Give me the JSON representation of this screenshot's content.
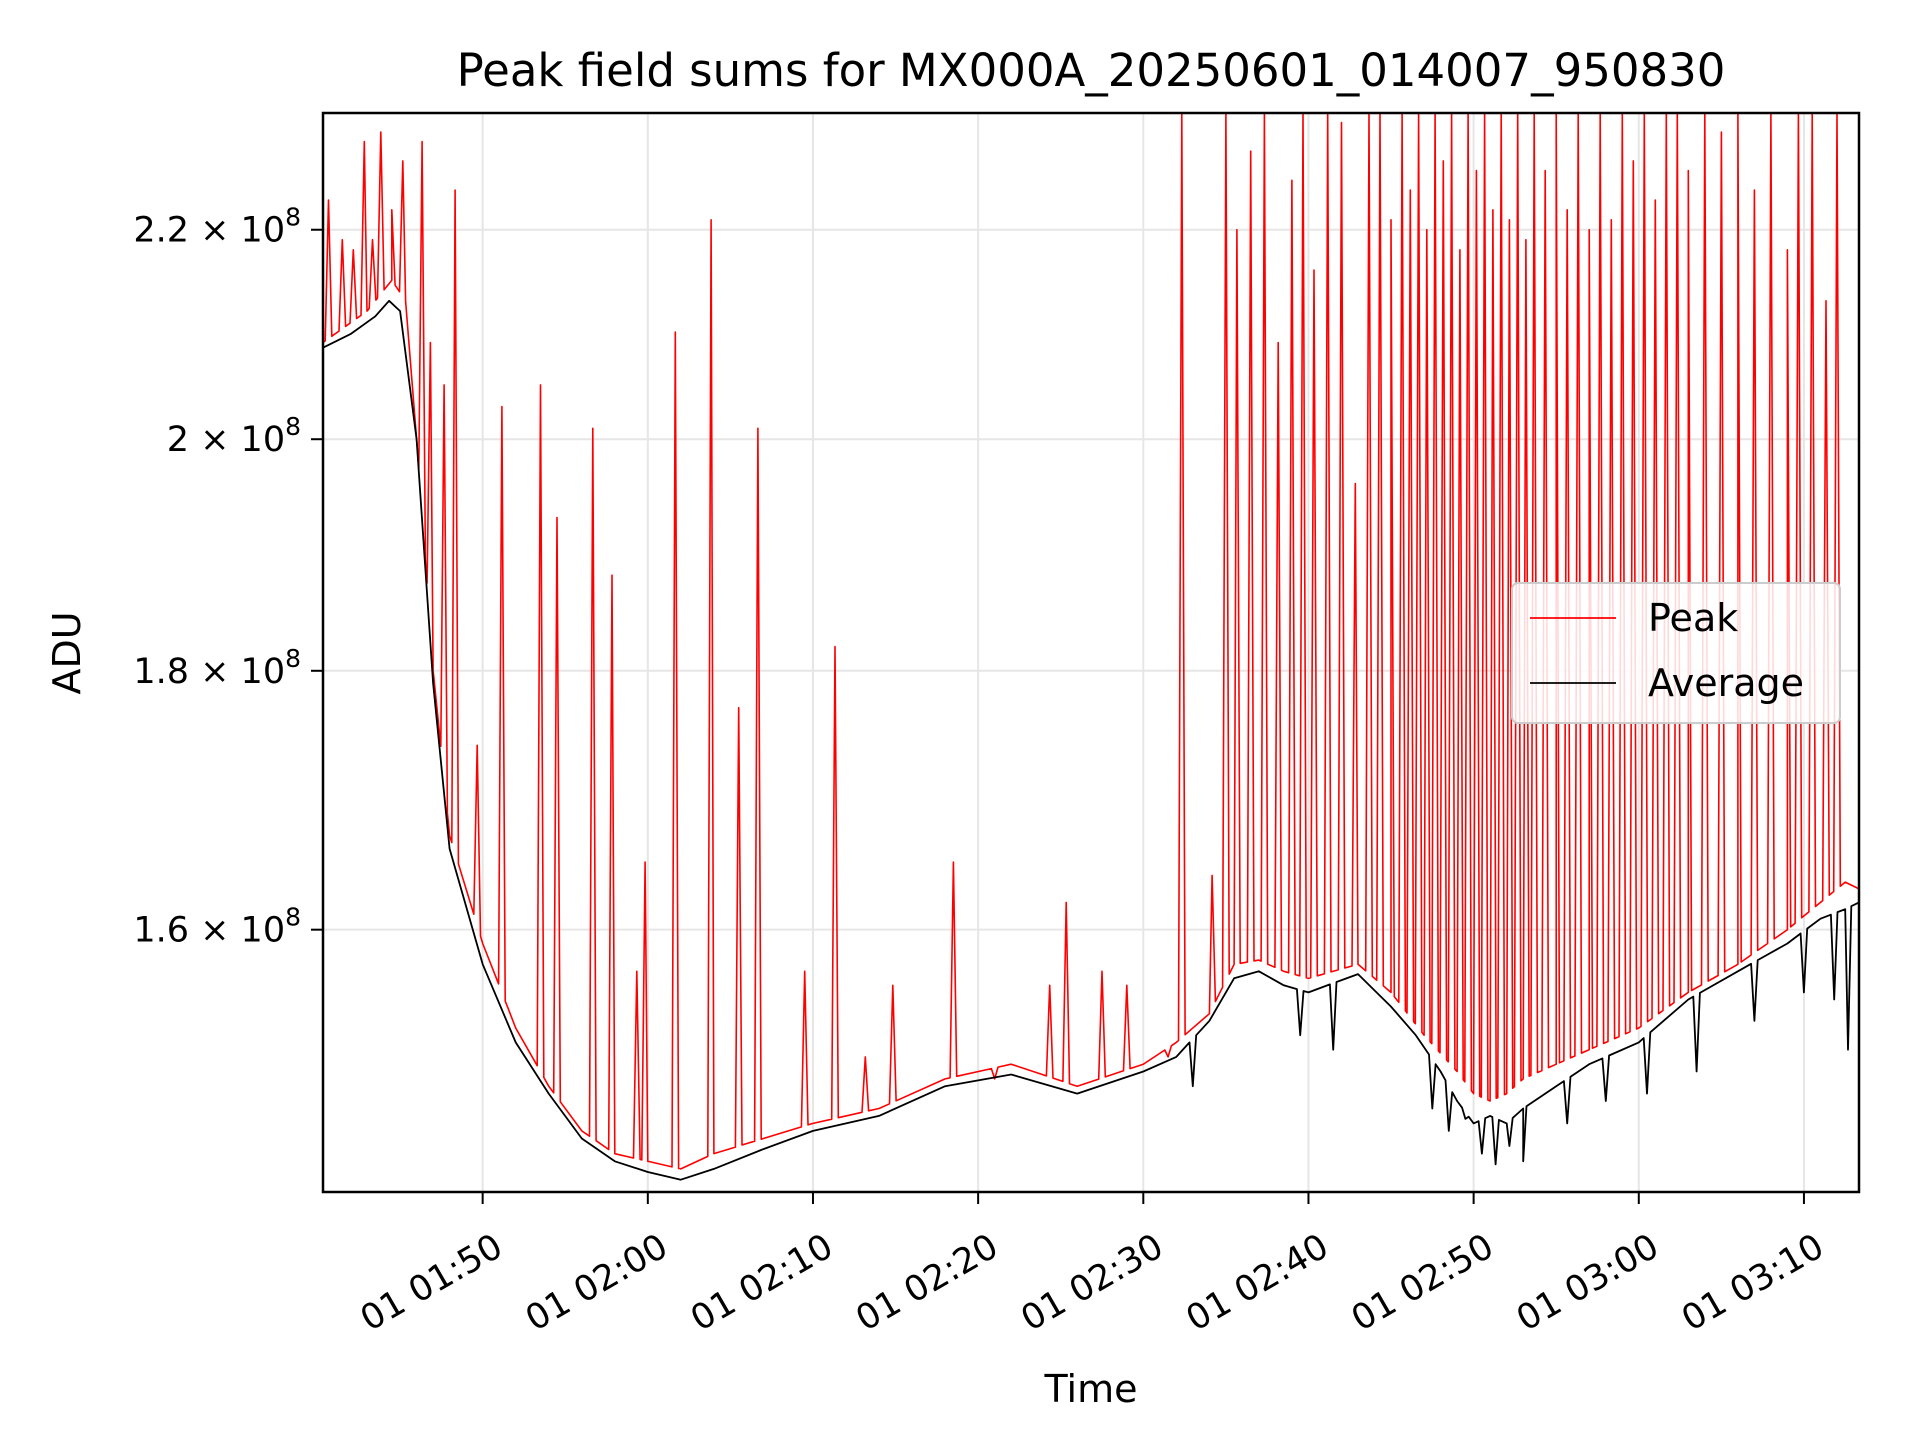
{
  "chart_data": {
    "type": "line",
    "title": "Peak field sums for MX000A_20250601_014007_950830",
    "xlabel": "Time",
    "ylabel": "ADU",
    "x_range": [
      "01:40:20",
      "03:13:20"
    ],
    "x_ticks": [
      {
        "time": "01:50",
        "label": "01 01:50"
      },
      {
        "time": "02:00",
        "label": "01 02:00"
      },
      {
        "time": "02:10",
        "label": "01 02:10"
      },
      {
        "time": "02:20",
        "label": "01 02:20"
      },
      {
        "time": "02:30",
        "label": "01 02:30"
      },
      {
        "time": "02:40",
        "label": "01 02:40"
      },
      {
        "time": "02:50",
        "label": "01 02:50"
      },
      {
        "time": "03:00",
        "label": "01 03:00"
      },
      {
        "time": "03:10",
        "label": "01 03:10"
      }
    ],
    "y_scale": "log",
    "ylim": [
      142000000,
      232000000
    ],
    "y_ticks": [
      {
        "value": 160000000,
        "mantissa": "1.6",
        "exp": "8"
      },
      {
        "value": 180000000,
        "mantissa": "1.8",
        "exp": "8"
      },
      {
        "value": 200000000,
        "mantissa": "2",
        "exp": "8"
      },
      {
        "value": 220000000,
        "mantissa": "2.2",
        "exp": "8"
      }
    ],
    "grid": true,
    "legend_position": "center-right",
    "series": [
      {
        "name": "Peak",
        "color": "#ff0000",
        "x": [
          "01:40:20",
          "01:43:00",
          "01:44:30",
          "01:45:20",
          "01:46:00",
          "01:47:00",
          "01:48:00",
          "01:50:00",
          "01:52:00",
          "01:54:00",
          "01:56:00",
          "01:58:00",
          "02:00:00",
          "02:02:00",
          "02:04:00",
          "02:07:00",
          "02:10:00",
          "02:14:00",
          "02:18:00",
          "02:22:00",
          "02:26:00",
          "02:30:00",
          "02:32:00",
          "02:34:00",
          "02:35:30",
          "02:37:00",
          "02:38:30",
          "02:40:00",
          "02:43:00",
          "02:45:00",
          "02:47:00",
          "02:49:00",
          "02:50:00",
          "02:51:00",
          "02:52:00",
          "02:53:00",
          "02:55:00",
          "02:57:00",
          "03:00:00",
          "03:03:00",
          "03:06:00",
          "03:09:00",
          "03:11:00",
          "03:12:30",
          "03:13:20"
        ],
        "y": [
          209000000,
          212000000,
          215000000,
          213000000,
          200000000,
          180000000,
          167000000,
          159000000,
          153000000,
          149000000,
          146000000,
          144500000,
          144000000,
          143500000,
          144500000,
          145500000,
          146500000,
          147500000,
          149500000,
          150500000,
          149000000,
          150500000,
          152000000,
          154000000,
          157500000,
          157800000,
          157000000,
          156500000,
          157500000,
          155500000,
          152500000,
          150000000,
          148500000,
          148000000,
          148500000,
          149500000,
          150500000,
          151500000,
          153000000,
          155500000,
          157500000,
          160000000,
          162000000,
          163500000,
          163000000
        ],
        "spikes": [
          [
            "01:40:40",
            223000000
          ],
          [
            "01:41:30",
            219000000
          ],
          [
            "01:42:10",
            218000000
          ],
          [
            "01:42:50",
            229000000
          ],
          [
            "01:43:20",
            219000000
          ],
          [
            "01:43:50",
            230000000
          ],
          [
            "01:44:30",
            222000000
          ],
          [
            "01:45:10",
            227000000
          ],
          [
            "01:46:20",
            229000000
          ],
          [
            "01:46:50",
            209000000
          ],
          [
            "01:47:40",
            205000000
          ],
          [
            "01:48:20",
            224000000
          ],
          [
            "01:49:40",
            174000000
          ],
          [
            "01:51:10",
            203000000
          ],
          [
            "01:53:30",
            205000000
          ],
          [
            "01:54:30",
            193000000
          ],
          [
            "01:56:40",
            201000000
          ],
          [
            "01:57:50",
            188000000
          ],
          [
            "01:59:20",
            157000000
          ],
          [
            "01:59:50",
            165000000
          ],
          [
            "02:01:40",
            210000000
          ],
          [
            "02:03:50",
            221000000
          ],
          [
            "02:05:30",
            177000000
          ],
          [
            "02:06:40",
            201000000
          ],
          [
            "02:09:30",
            157000000
          ],
          [
            "02:11:20",
            182000000
          ],
          [
            "02:13:10",
            151000000
          ],
          [
            "02:14:50",
            156000000
          ],
          [
            "02:18:30",
            165000000
          ],
          [
            "02:21:00",
            149500000
          ],
          [
            "02:24:20",
            156000000
          ],
          [
            "02:25:20",
            162000000
          ],
          [
            "02:27:30",
            157000000
          ],
          [
            "02:29:00",
            156000000
          ],
          [
            "02:31:30",
            151000000
          ],
          [
            "02:32:20",
            232000000
          ],
          [
            "02:34:10",
            164000000
          ],
          [
            "02:35:00",
            232000000
          ],
          [
            "02:35:40",
            220000000
          ],
          [
            "02:36:30",
            228000000
          ],
          [
            "02:37:20",
            232000000
          ],
          [
            "02:38:10",
            209000000
          ],
          [
            "02:39:00",
            225000000
          ],
          [
            "02:39:40",
            232000000
          ],
          [
            "02:40:20",
            216000000
          ],
          [
            "02:41:10",
            232000000
          ],
          [
            "02:42:00",
            231000000
          ],
          [
            "02:42:50",
            196000000
          ],
          [
            "02:43:40",
            232000000
          ],
          [
            "02:44:20",
            232000000
          ],
          [
            "02:45:00",
            221000000
          ],
          [
            "02:45:40",
            232000000
          ],
          [
            "02:46:10",
            224000000
          ],
          [
            "02:46:40",
            232000000
          ],
          [
            "02:47:10",
            220000000
          ],
          [
            "02:47:40",
            232000000
          ],
          [
            "02:48:10",
            227000000
          ],
          [
            "02:48:40",
            232000000
          ],
          [
            "02:49:10",
            218000000
          ],
          [
            "02:49:40",
            232000000
          ],
          [
            "02:50:10",
            226000000
          ],
          [
            "02:50:40",
            232000000
          ],
          [
            "02:51:10",
            222000000
          ],
          [
            "02:51:40",
            232000000
          ],
          [
            "02:52:10",
            221000000
          ],
          [
            "02:52:40",
            232000000
          ],
          [
            "02:53:10",
            219000000
          ],
          [
            "02:53:40",
            232000000
          ],
          [
            "02:54:20",
            226000000
          ],
          [
            "02:55:00",
            232000000
          ],
          [
            "02:55:40",
            222000000
          ],
          [
            "02:56:20",
            232000000
          ],
          [
            "02:57:00",
            220000000
          ],
          [
            "02:57:40",
            232000000
          ],
          [
            "02:58:20",
            221000000
          ],
          [
            "02:59:00",
            232000000
          ],
          [
            "02:59:40",
            227000000
          ],
          [
            "03:00:20",
            232000000
          ],
          [
            "03:01:00",
            223000000
          ],
          [
            "03:01:40",
            232000000
          ],
          [
            "03:02:20",
            232000000
          ],
          [
            "03:03:00",
            226000000
          ],
          [
            "03:04:00",
            232000000
          ],
          [
            "03:05:00",
            230000000
          ],
          [
            "03:06:00",
            232000000
          ],
          [
            "03:07:00",
            224000000
          ],
          [
            "03:08:00",
            232000000
          ],
          [
            "03:09:00",
            218000000
          ],
          [
            "03:09:40",
            232000000
          ],
          [
            "03:10:30",
            232000000
          ],
          [
            "03:11:20",
            213000000
          ],
          [
            "03:12:00",
            232000000
          ]
        ]
      },
      {
        "name": "Average",
        "color": "#000000",
        "x": [
          "01:40:20",
          "01:42:00",
          "01:43:30",
          "01:44:20",
          "01:45:00",
          "01:46:00",
          "01:47:00",
          "01:48:00",
          "01:50:00",
          "01:52:00",
          "01:54:00",
          "01:56:00",
          "01:58:00",
          "02:00:00",
          "02:02:00",
          "02:04:00",
          "02:07:00",
          "02:10:00",
          "02:14:00",
          "02:18:00",
          "02:22:00",
          "02:26:00",
          "02:30:00",
          "02:32:00",
          "02:34:00",
          "02:35:30",
          "02:37:00",
          "02:38:30",
          "02:40:00",
          "02:43:00",
          "02:45:00",
          "02:46:30",
          "02:48:00",
          "02:49:00",
          "02:50:00",
          "02:51:00",
          "02:52:00",
          "02:53:00",
          "02:55:00",
          "02:57:00",
          "03:00:00",
          "03:03:00",
          "03:06:00",
          "03:09:00",
          "03:11:00",
          "03:12:30",
          "03:13:20"
        ],
        "y": [
          208500000,
          209800000,
          211500000,
          213000000,
          212000000,
          200000000,
          179000000,
          166000000,
          157500000,
          152000000,
          148500000,
          145500000,
          144000000,
          143300000,
          142800000,
          143500000,
          144800000,
          146000000,
          147000000,
          149000000,
          149800000,
          148500000,
          150000000,
          151000000,
          153500000,
          156500000,
          157000000,
          156000000,
          155500000,
          156800000,
          154500000,
          152500000,
          150000000,
          148000000,
          146500000,
          147000000,
          146500000,
          147500000,
          149000000,
          150500000,
          152000000,
          155000000,
          157000000,
          159000000,
          160800000,
          161500000,
          162000000
        ],
        "dips": [
          [
            "02:33:00",
            149000000
          ],
          [
            "02:39:30",
            152500000
          ],
          [
            "02:41:30",
            151500000
          ],
          [
            "02:47:30",
            147500000
          ],
          [
            "02:48:30",
            146000000
          ],
          [
            "02:49:30",
            146800000
          ],
          [
            "02:50:30",
            144500000
          ],
          [
            "02:51:20",
            143800000
          ],
          [
            "02:52:10",
            145000000
          ],
          [
            "02:53:00",
            144000000
          ],
          [
            "02:55:40",
            146500000
          ],
          [
            "02:58:00",
            148000000
          ],
          [
            "03:00:30",
            148500000
          ],
          [
            "03:03:30",
            150000000
          ],
          [
            "03:07:00",
            153500000
          ],
          [
            "03:10:00",
            155500000
          ],
          [
            "03:11:50",
            155000000
          ],
          [
            "03:12:40",
            151500000
          ]
        ]
      }
    ]
  }
}
